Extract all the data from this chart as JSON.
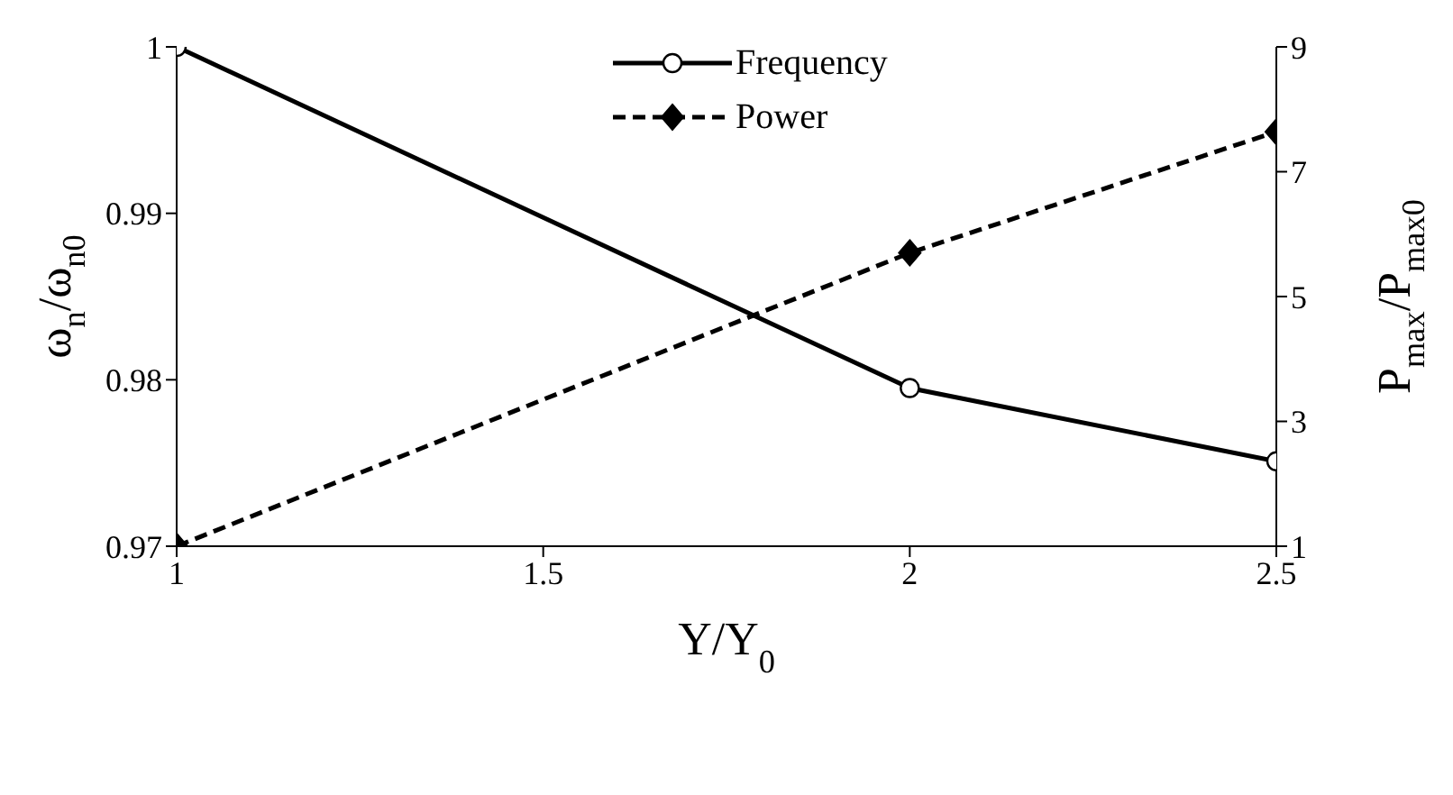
{
  "chart_data": {
    "type": "line",
    "xlabel": "Y/Y$_{0}$",
    "ylabel": "ω$_{n}$/ω$_{n0}$",
    "y2label": "P$_{max}$/P$_{max0}$",
    "x": [
      1,
      2,
      2.5
    ],
    "xlim": [
      1,
      2.5
    ],
    "xticks": [
      1,
      1.5,
      2,
      2.5
    ],
    "ylim": [
      0.97,
      1
    ],
    "yticks": [
      0.97,
      0.98,
      0.99,
      1
    ],
    "y2lim": [
      1,
      9
    ],
    "y2ticks": [
      1,
      3,
      5,
      7,
      9
    ],
    "legend": "top",
    "series": [
      {
        "name": "Frequency",
        "color": "#000000",
        "values": [
          1,
          0.9795,
          0.9751
        ],
        "marker": "circle",
        "line_style": "solid"
      },
      {
        "name": "Power",
        "color": "#000000",
        "values": [
          1,
          5.7,
          7.64
        ],
        "axis": "y2",
        "marker": "diamond",
        "line_style": "dashed"
      }
    ]
  }
}
